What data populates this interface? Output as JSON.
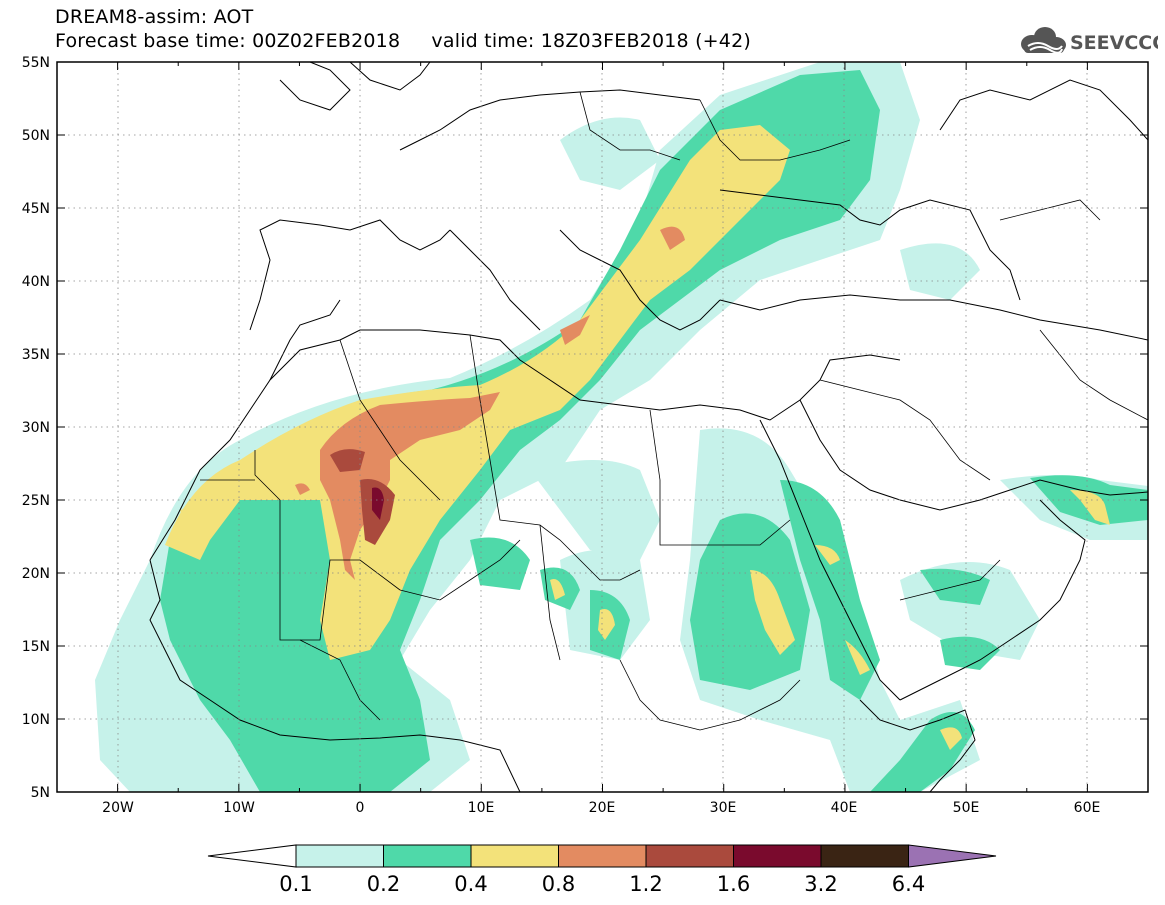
{
  "header": {
    "title_line1": "DREAM8-assim: AOT",
    "title_line2": "Forecast base time: 00Z02FEB2018     valid time: 18Z03FEB2018 (+42)",
    "logo_text": "SEEVCCC"
  },
  "map": {
    "variable": "AOT",
    "lon_range": [
      -25,
      65
    ],
    "lat_range": [
      5,
      55
    ],
    "lat_labels": [
      "5N",
      "10N",
      "15N",
      "20N",
      "25N",
      "30N",
      "35N",
      "40N",
      "45N",
      "50N",
      "55N"
    ],
    "lon_labels": [
      "20W",
      "10W",
      "0",
      "10E",
      "20E",
      "30E",
      "40E",
      "50E",
      "60E"
    ],
    "grid": "dotted"
  },
  "colorbar": {
    "levels": [
      "0.1",
      "0.2",
      "0.4",
      "0.8",
      "1.2",
      "1.6",
      "3.2",
      "6.4"
    ],
    "colors": [
      "#ffffff",
      "#c6f2ea",
      "#4fd9a9",
      "#f3e27a",
      "#e38b61",
      "#aa4a3d",
      "#7a0a2d",
      "#3a2414",
      "#9b72b3"
    ]
  },
  "colors": {
    "shade_01": "#c6f2ea",
    "shade_02": "#4fd9a9",
    "shade_04": "#f3e27a",
    "shade_08": "#e38b61",
    "shade_12": "#aa4a3d",
    "shade_16": "#7a0a2d",
    "logo": "#555555"
  }
}
